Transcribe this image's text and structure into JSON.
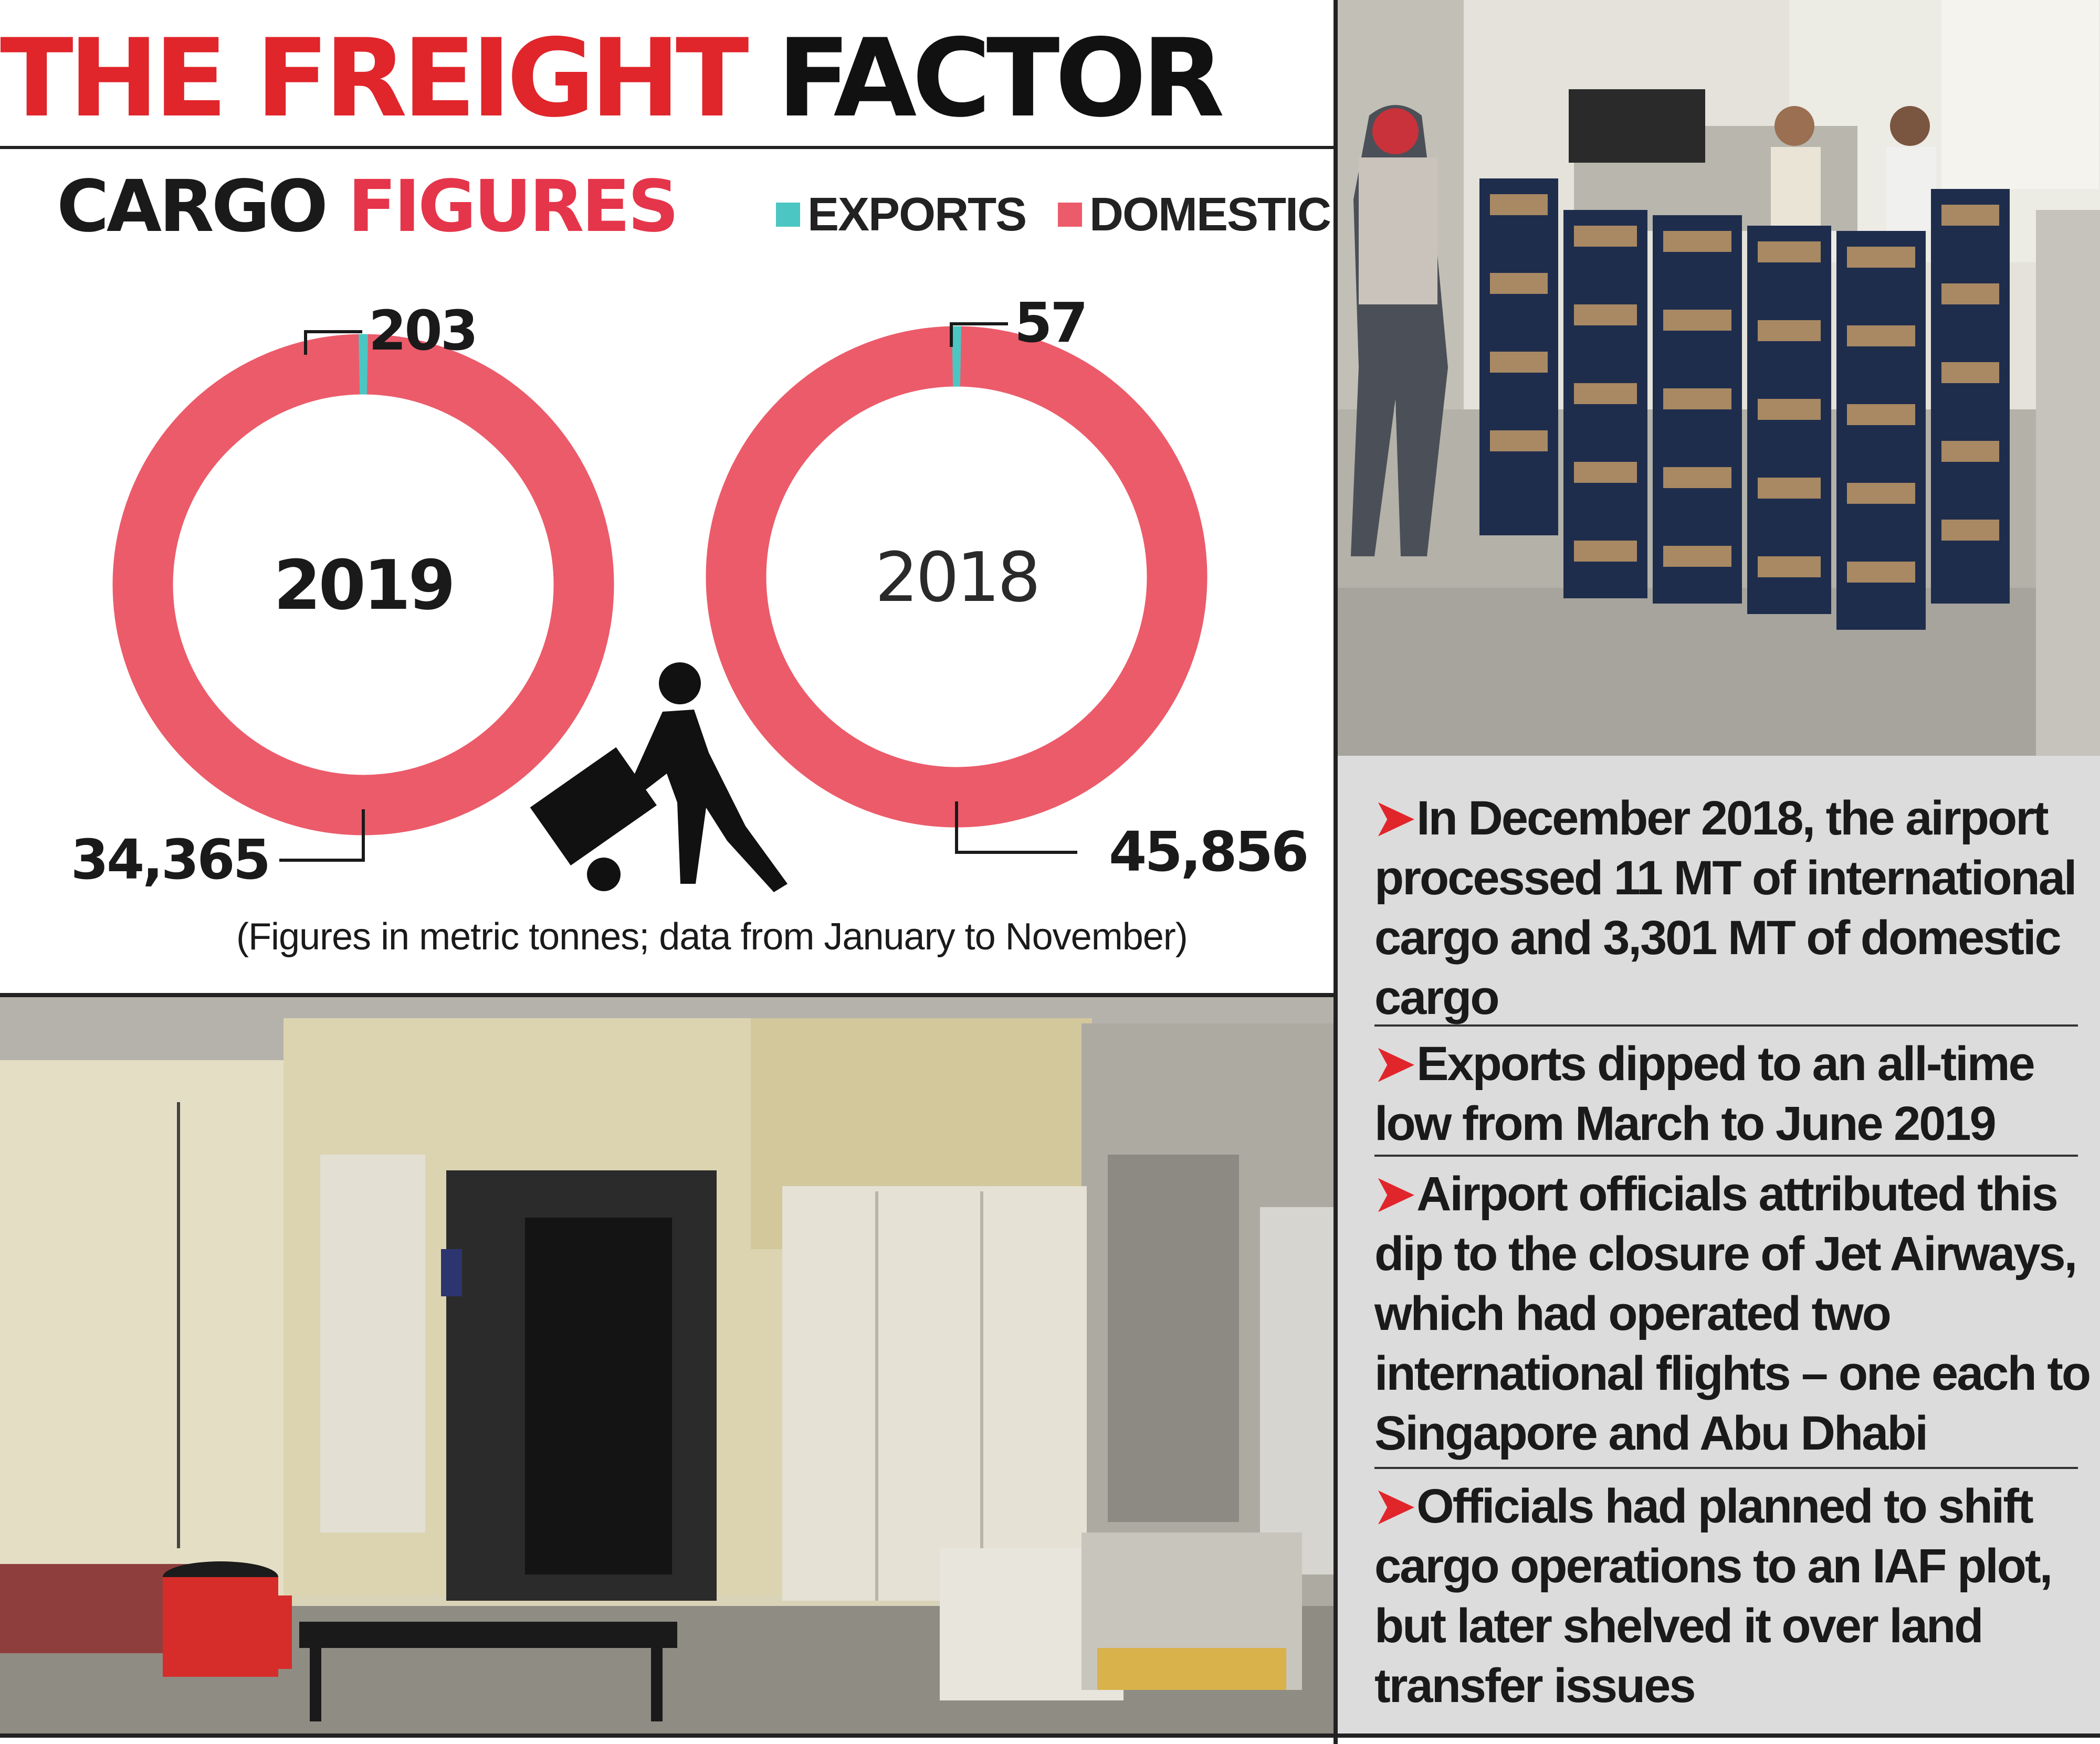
{
  "headline": {
    "part1": "THE FREIGHT",
    "part2": "FACTOR"
  },
  "chart_data": {
    "type": "donut",
    "title": {
      "part1": "CARGO",
      "part2": "FIGURES"
    },
    "series_names": [
      "EXPORTS",
      "DOMESTIC"
    ],
    "colors": {
      "exports": "#4cc6c2",
      "domestic": "#ec5b6a"
    },
    "legend_position": "top-right",
    "charts": [
      {
        "label": "2019",
        "exports": 203,
        "domestic": 34365,
        "exports_label": "203",
        "domestic_label": "34,365"
      },
      {
        "label": "2018",
        "exports": 57,
        "domestic": 45856,
        "exports_label": "57",
        "domestic_label": "45,856"
      }
    ],
    "note": "(Figures in metric tonnes; data from January to November)"
  },
  "icons": {
    "porter": "porter-with-hand-truck-icon",
    "bullet": "arrow-bullet-icon"
  },
  "facts": [
    "In December 2018, the airport processed 11 MT of international cargo and 3,301 MT of domestic cargo",
    "Exports dipped to an all-time low from March to June 2019",
    "Airport officials attributed this dip to the closure of Jet Airways, which had operated two international flights – one each to Singapore and Abu Dhabi",
    "Officials had planned to shift cargo operations to an IAF plot, but later shelved it over land transfer issues"
  ],
  "fact_bullet": "➤"
}
